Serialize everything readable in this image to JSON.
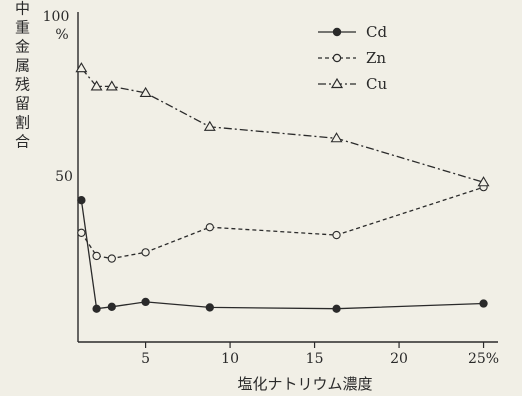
{
  "chart_data": {
    "type": "line",
    "title": "",
    "xlabel": "塩化ナトリウム濃度",
    "ylabel": "精白米中重金属残留割合",
    "xlim": [
      1,
      25.5
    ],
    "ylim": [
      0,
      100
    ],
    "x_ticks": [
      {
        "value": 5,
        "label": "5"
      },
      {
        "value": 10,
        "label": "10"
      },
      {
        "value": 15,
        "label": "15"
      },
      {
        "value": 20,
        "label": "20"
      },
      {
        "value": 25,
        "label": "25%"
      }
    ],
    "y_ticks": [
      {
        "value": 100,
        "label": "100"
      },
      {
        "value": 50,
        "label": "50"
      }
    ],
    "y_unit": "%",
    "grid": false,
    "legend_position": "top-right",
    "series": [
      {
        "name": "Cd",
        "marker": "filled-circle",
        "dash": "solid",
        "points": [
          [
            1.2,
            43.5
          ],
          [
            2.1,
            10.2
          ],
          [
            3.0,
            10.8
          ],
          [
            5.0,
            12.3
          ],
          [
            8.8,
            10.6
          ],
          [
            16.3,
            10.2
          ],
          [
            25.0,
            11.8
          ]
        ]
      },
      {
        "name": "Zn",
        "marker": "open-circle",
        "dash": "dashed",
        "points": [
          [
            1.2,
            33.5
          ],
          [
            2.1,
            26.4
          ],
          [
            3.0,
            25.6
          ],
          [
            5.0,
            27.5
          ],
          [
            8.8,
            35.2
          ],
          [
            16.3,
            32.8
          ],
          [
            25.0,
            47.5
          ]
        ]
      },
      {
        "name": "Cu",
        "marker": "open-triangle",
        "dash": "dashdot",
        "points": [
          [
            1.2,
            84.0
          ],
          [
            2.1,
            78.4
          ],
          [
            3.0,
            78.4
          ],
          [
            5.0,
            76.4
          ],
          [
            8.8,
            66.0
          ],
          [
            16.3,
            62.5
          ],
          [
            25.0,
            49.0
          ]
        ]
      }
    ]
  }
}
